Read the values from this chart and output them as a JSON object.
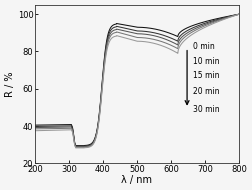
{
  "xlabel": "λ / nm",
  "ylabel": "R / %",
  "xlim": [
    200,
    800
  ],
  "ylim": [
    20,
    105
  ],
  "yticks": [
    20,
    40,
    60,
    80,
    100
  ],
  "xticks": [
    200,
    300,
    400,
    500,
    600,
    700,
    800
  ],
  "legend_labels": [
    "0 min",
    "10 min",
    "15 min",
    "20 min",
    "30 min"
  ],
  "line_colors": [
    "#111111",
    "#333333",
    "#555555",
    "#777777",
    "#999999"
  ],
  "background_color": "#f5f5f5",
  "title": "",
  "flat_vals": [
    40.5,
    39.8,
    39.2,
    38.5,
    37.5
  ],
  "flat2_vals": [
    40.8,
    40.1,
    39.5,
    38.8,
    38.0
  ],
  "dip_vals": [
    29.5,
    29.2,
    28.9,
    28.6,
    28.3
  ],
  "peak_vals": [
    95.0,
    93.5,
    92.0,
    90.5,
    88.5
  ],
  "mid_vals": [
    93.0,
    91.0,
    89.5,
    87.5,
    85.5
  ],
  "dip2_vals": [
    88.0,
    85.5,
    83.5,
    81.5,
    79.0
  ],
  "end_vals": [
    100.0,
    100.0,
    100.0,
    100.0,
    100.0
  ]
}
